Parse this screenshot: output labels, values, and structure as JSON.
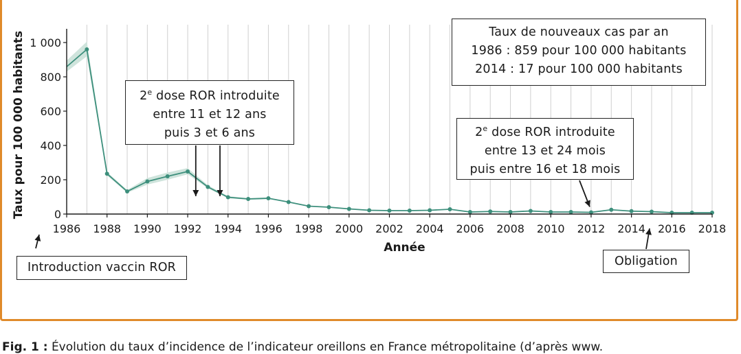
{
  "chart_data": {
    "type": "line",
    "xlabel": "Année",
    "ylabel": "Taux pour 100 000 habitants",
    "xlim": [
      1986,
      2018
    ],
    "ylim": [
      0,
      1000
    ],
    "x_ticks": [
      1986,
      1988,
      1990,
      1992,
      1994,
      1996,
      1998,
      2000,
      2002,
      2004,
      2006,
      2008,
      2010,
      2012,
      2014,
      2016,
      2018
    ],
    "y_ticks": [
      {
        "value": 0,
        "label": "0"
      },
      {
        "value": 200,
        "label": "200"
      },
      {
        "value": 400,
        "label": "400"
      },
      {
        "value": 600,
        "label": "600"
      },
      {
        "value": 800,
        "label": "800"
      },
      {
        "value": 1000,
        "label": "1 000"
      }
    ],
    "grid": "vertical",
    "line_color": "#3d8f7c",
    "band_color": "#cfe4dc",
    "points": [
      {
        "x": 1986,
        "y": 859
      },
      {
        "x": 1987,
        "y": 960
      },
      {
        "x": 1988,
        "y": 235
      },
      {
        "x": 1989,
        "y": 132
      },
      {
        "x": 1990,
        "y": 190
      },
      {
        "x": 1991,
        "y": 220
      },
      {
        "x": 1992,
        "y": 248
      },
      {
        "x": 1993,
        "y": 158
      },
      {
        "x": 1994,
        "y": 98
      },
      {
        "x": 1995,
        "y": 88
      },
      {
        "x": 1996,
        "y": 92
      },
      {
        "x": 1997,
        "y": 70
      },
      {
        "x": 1998,
        "y": 46
      },
      {
        "x": 1999,
        "y": 40
      },
      {
        "x": 2000,
        "y": 30
      },
      {
        "x": 2001,
        "y": 22
      },
      {
        "x": 2002,
        "y": 20
      },
      {
        "x": 2003,
        "y": 20
      },
      {
        "x": 2004,
        "y": 22
      },
      {
        "x": 2005,
        "y": 28
      },
      {
        "x": 2006,
        "y": 12
      },
      {
        "x": 2007,
        "y": 15
      },
      {
        "x": 2008,
        "y": 12
      },
      {
        "x": 2009,
        "y": 18
      },
      {
        "x": 2010,
        "y": 12
      },
      {
        "x": 2011,
        "y": 12
      },
      {
        "x": 2012,
        "y": 10
      },
      {
        "x": 2013,
        "y": 25
      },
      {
        "x": 2014,
        "y": 17
      },
      {
        "x": 2015,
        "y": 14
      },
      {
        "x": 2016,
        "y": 8
      },
      {
        "x": 2017,
        "y": 8
      },
      {
        "x": 2018,
        "y": 8
      }
    ],
    "band": [
      {
        "x": 1986,
        "lo": 830,
        "hi": 895
      },
      {
        "x": 1987,
        "lo": 920,
        "hi": 1005
      },
      {
        "x": 1988,
        "lo": 225,
        "hi": 245
      },
      {
        "x": 1989,
        "lo": 124,
        "hi": 140
      },
      {
        "x": 1990,
        "lo": 172,
        "hi": 210
      },
      {
        "x": 1991,
        "lo": 200,
        "hi": 242
      },
      {
        "x": 1992,
        "lo": 232,
        "hi": 268
      },
      {
        "x": 1993,
        "lo": 150,
        "hi": 168
      },
      {
        "x": 1994,
        "lo": 92,
        "hi": 104
      },
      {
        "x": 1995,
        "lo": 84,
        "hi": 93
      },
      {
        "x": 1996,
        "lo": 87,
        "hi": 97
      }
    ],
    "annotations": [
      {
        "id": "dose2-1992",
        "lines": [
          "2e dose ROR introduite",
          "entre 11 et 12 ans",
          "puis 3 et 6 ans"
        ],
        "arrow_x": [
          1992.4,
          1993.6
        ],
        "arrow_to_y": 120
      },
      {
        "id": "dose2-2012",
        "lines": [
          "2e dose ROR introduite",
          "entre 13 et 24 mois",
          "puis entre 16 et 18 mois"
        ],
        "arrow_x": [
          2012
        ],
        "arrow_to_y": 10
      },
      {
        "id": "taux-cas",
        "lines": [
          "Taux de nouveaux cas par an",
          "1986 : 859 pour 100 000 habitants",
          "2014 : 17 pour 100 000 habitants"
        ]
      },
      {
        "id": "introduction",
        "lines": [
          "Introduction vaccin ROR"
        ],
        "arrow_x": [
          1986
        ]
      },
      {
        "id": "obligation",
        "lines": [
          "Obligation"
        ],
        "arrow_x": [
          2014.5
        ]
      }
    ]
  },
  "caption": {
    "label": "Fig. 1 :",
    "text": "Évolution du taux d’incidence de l’indicateur oreillons en France métropolitaine (d’après www."
  }
}
